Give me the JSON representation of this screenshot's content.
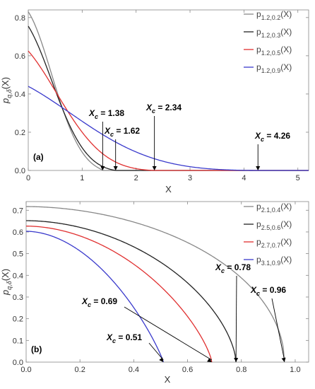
{
  "chart_data": [
    {
      "type": "line",
      "panel_label": "(a)",
      "xlabel": "X",
      "ylabel": "p_{q,δ}(X)",
      "xlim": [
        0,
        5.2
      ],
      "ylim": [
        0,
        0.84
      ],
      "xticks": [
        "0",
        "1",
        "2",
        "3",
        "4",
        "5"
      ],
      "yticks": [
        "0.0",
        "0.2",
        "0.4",
        "0.6",
        "0.8"
      ],
      "legend_position": "top-right",
      "series": [
        {
          "name": "p1.2,0.2(X)",
          "sub": "1.2,0.2",
          "color": "#888888",
          "y0": 0.83,
          "xc": 1.38
        },
        {
          "name": "p1.2,0.3(X)",
          "sub": "1.2,0.3",
          "color": "#222222",
          "y0": 0.755,
          "xc": 1.62
        },
        {
          "name": "p1.2,0.5(X)",
          "sub": "1.2,0.5",
          "color": "#e03030",
          "y0": 0.625,
          "xc": 2.34
        },
        {
          "name": "p1.2,0.9(X)",
          "sub": "1.2,0.9",
          "color": "#3a3acc",
          "y0": 0.44,
          "xc": 4.26
        }
      ],
      "annotations": [
        {
          "text": "1.38",
          "x": 1.38
        },
        {
          "text": "1.62",
          "x": 1.62
        },
        {
          "text": "2.34",
          "x": 2.34
        },
        {
          "text": "4.26",
          "x": 4.26
        }
      ]
    },
    {
      "type": "line",
      "panel_label": "(b)",
      "xlabel": "X",
      "ylabel": "p_{q,δ}(X)",
      "xlim": [
        0,
        1.05
      ],
      "ylim": [
        0,
        0.74
      ],
      "xticks": [
        "0.0",
        "0.2",
        "0.4",
        "0.6",
        "0.8",
        "1.0"
      ],
      "yticks": [
        "0.0",
        "0.1",
        "0.2",
        "0.3",
        "0.4",
        "0.5",
        "0.6",
        "0.7"
      ],
      "legend_position": "top-right",
      "series": [
        {
          "name": "p2.1,0.4(X)",
          "sub": "2.1,0.4",
          "color": "#888888",
          "y0": 0.717,
          "xc": 0.96
        },
        {
          "name": "p2.5,0.6(X)",
          "sub": "2.5,0.6",
          "color": "#222222",
          "y0": 0.652,
          "xc": 0.78
        },
        {
          "name": "p2.7,0.7(X)",
          "sub": "2.7,0.7",
          "color": "#e03030",
          "y0": 0.627,
          "xc": 0.69
        },
        {
          "name": "p3.1,0.9(X)",
          "sub": "3.1,0.9",
          "color": "#3a3acc",
          "y0": 0.603,
          "xc": 0.51
        }
      ],
      "annotations": [
        {
          "text": "0.78",
          "x": 0.78
        },
        {
          "text": "0.96",
          "x": 0.96
        },
        {
          "text": "0.69",
          "x": 0.69
        },
        {
          "text": "0.51",
          "x": 0.51
        }
      ]
    }
  ]
}
